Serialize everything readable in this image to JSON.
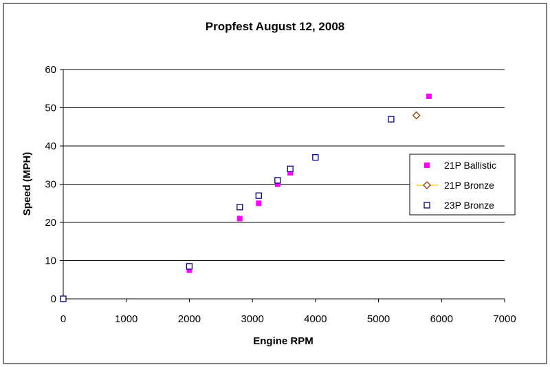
{
  "chart_data": {
    "type": "scatter",
    "title": "Propfest August 12, 2008",
    "xlabel": "Engine RPM",
    "ylabel": "Speed (MPH)",
    "xlim": [
      0,
      7000
    ],
    "ylim": [
      0,
      60
    ],
    "xticks": [
      "0",
      "1000",
      "2000",
      "3000",
      "4000",
      "5000",
      "6000",
      "7000"
    ],
    "yticks": [
      "0",
      "10",
      "20",
      "30",
      "40",
      "50",
      "60"
    ],
    "grid": "horizontal",
    "legend_position": "right",
    "series": [
      {
        "name": "21P Ballistic",
        "marker": "filled-square",
        "color": "#ff00ff",
        "points": [
          [
            0,
            0
          ],
          [
            2000,
            7.5
          ],
          [
            2800,
            21
          ],
          [
            3100,
            25
          ],
          [
            3400,
            30
          ],
          [
            3600,
            33
          ],
          [
            5800,
            53
          ]
        ]
      },
      {
        "name": "21P Bronze",
        "marker": "diamond",
        "color": "#993300",
        "line_color": "#ffcc00",
        "points": [
          [
            5600,
            48
          ]
        ]
      },
      {
        "name": "23P Bronze",
        "marker": "open-square",
        "color": "#000080",
        "points": [
          [
            0,
            0
          ],
          [
            2000,
            8.5
          ],
          [
            2800,
            24
          ],
          [
            3100,
            27
          ],
          [
            3400,
            31
          ],
          [
            3600,
            34
          ],
          [
            4000,
            37
          ],
          [
            5200,
            47
          ]
        ]
      }
    ]
  }
}
